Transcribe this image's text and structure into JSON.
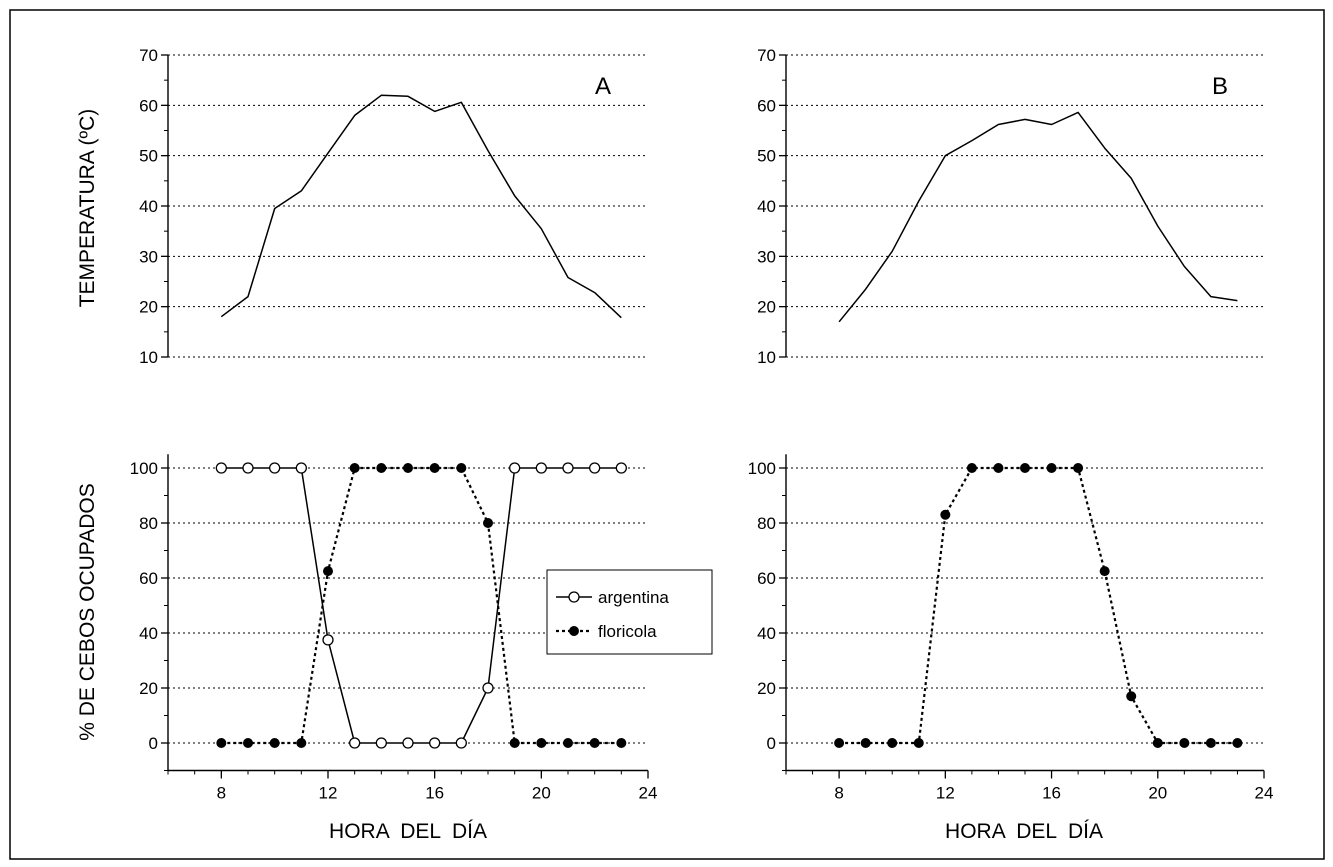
{
  "chart_data": [
    {
      "type": "line",
      "panel": "A",
      "panel_label": "A",
      "ylabel": "TEMPERATURA  (ºC)",
      "xlabel": "",
      "xlim": [
        6,
        24
      ],
      "ylim": [
        10,
        70
      ],
      "yticks": [
        10,
        20,
        30,
        40,
        50,
        60,
        70
      ],
      "ytick_labels": [
        "10",
        "20",
        "30",
        "40",
        "50",
        "60",
        "70"
      ],
      "grid": "horizontal dotted",
      "series": [
        {
          "x": [
            8,
            9,
            10,
            11,
            12,
            13,
            14,
            15,
            16,
            17,
            18,
            19,
            20,
            21,
            22,
            23
          ],
          "values": [
            18,
            22,
            39.5,
            43,
            50.5,
            58,
            62,
            61.8,
            58.8,
            60.6,
            51,
            42,
            35.5,
            25.8,
            22.8,
            17.8
          ]
        }
      ]
    },
    {
      "type": "line",
      "panel": "B",
      "panel_label": "B",
      "ylabel": "",
      "xlabel": "",
      "xlim": [
        6,
        24
      ],
      "ylim": [
        10,
        70
      ],
      "yticks": [
        10,
        20,
        30,
        40,
        50,
        60,
        70
      ],
      "ytick_labels": [
        "10",
        "20",
        "30",
        "40",
        "50",
        "60",
        "70"
      ],
      "grid": "horizontal dotted",
      "series": [
        {
          "x": [
            8,
            9,
            10,
            11,
            12,
            13,
            14,
            15,
            16,
            17,
            18,
            19,
            20,
            21,
            22,
            23
          ],
          "values": [
            17,
            23.5,
            31,
            41,
            50,
            53,
            56.2,
            57.2,
            56.2,
            58.6,
            51.5,
            45.5,
            36,
            28,
            22,
            21.2
          ]
        }
      ]
    },
    {
      "type": "line",
      "panel": "A",
      "ylabel": "% DE CEBOS OCUPADOS",
      "xlabel": "HORA  DEL  DÍA",
      "xlim": [
        6,
        24
      ],
      "ylim": [
        -10,
        105
      ],
      "xticks": [
        8,
        12,
        16,
        20,
        24
      ],
      "xtick_labels": [
        "8",
        "12",
        "16",
        "20",
        "24"
      ],
      "yticks": [
        0,
        20,
        40,
        60,
        80,
        100
      ],
      "ytick_labels": [
        "0",
        "20",
        "40",
        "60",
        "80",
        "100"
      ],
      "grid": "horizontal dotted",
      "legend": {
        "position": "center-right",
        "entries": [
          "argentina",
          "floricola"
        ]
      },
      "series": [
        {
          "name": "argentina",
          "marker": "open-circle",
          "line": "solid",
          "x": [
            8,
            9,
            10,
            11,
            12,
            13,
            14,
            15,
            16,
            17,
            18,
            19,
            20,
            21,
            22,
            23
          ],
          "values": [
            100,
            100,
            100,
            100,
            37.5,
            0,
            0,
            0,
            0,
            0,
            20,
            100,
            100,
            100,
            100,
            100
          ]
        },
        {
          "name": "floricola",
          "marker": "filled-circle",
          "line": "dotted",
          "x": [
            8,
            9,
            10,
            11,
            12,
            13,
            14,
            15,
            16,
            17,
            18,
            19,
            20,
            21,
            22,
            23
          ],
          "values": [
            0,
            0,
            0,
            0,
            62.5,
            100,
            100,
            100,
            100,
            100,
            80,
            0,
            0,
            0,
            0,
            0
          ]
        }
      ]
    },
    {
      "type": "line",
      "panel": "B",
      "ylabel": "",
      "xlabel": "HORA  DEL  DÍA",
      "xlim": [
        6,
        24
      ],
      "ylim": [
        -10,
        105
      ],
      "xticks": [
        8,
        12,
        16,
        20,
        24
      ],
      "xtick_labels": [
        "8",
        "12",
        "16",
        "20",
        "24"
      ],
      "yticks": [
        0,
        20,
        40,
        60,
        80,
        100
      ],
      "ytick_labels": [
        "0",
        "20",
        "40",
        "60",
        "80",
        "100"
      ],
      "grid": "horizontal dotted",
      "series": [
        {
          "marker": "filled-circle",
          "line": "dotted",
          "x": [
            8,
            9,
            10,
            11,
            12,
            13,
            14,
            15,
            16,
            17,
            18,
            19,
            20,
            21,
            22,
            23
          ],
          "values": [
            0,
            0,
            0,
            0,
            83,
            100,
            100,
            100,
            100,
            100,
            62.5,
            17,
            0,
            0,
            0,
            0
          ]
        }
      ]
    }
  ]
}
